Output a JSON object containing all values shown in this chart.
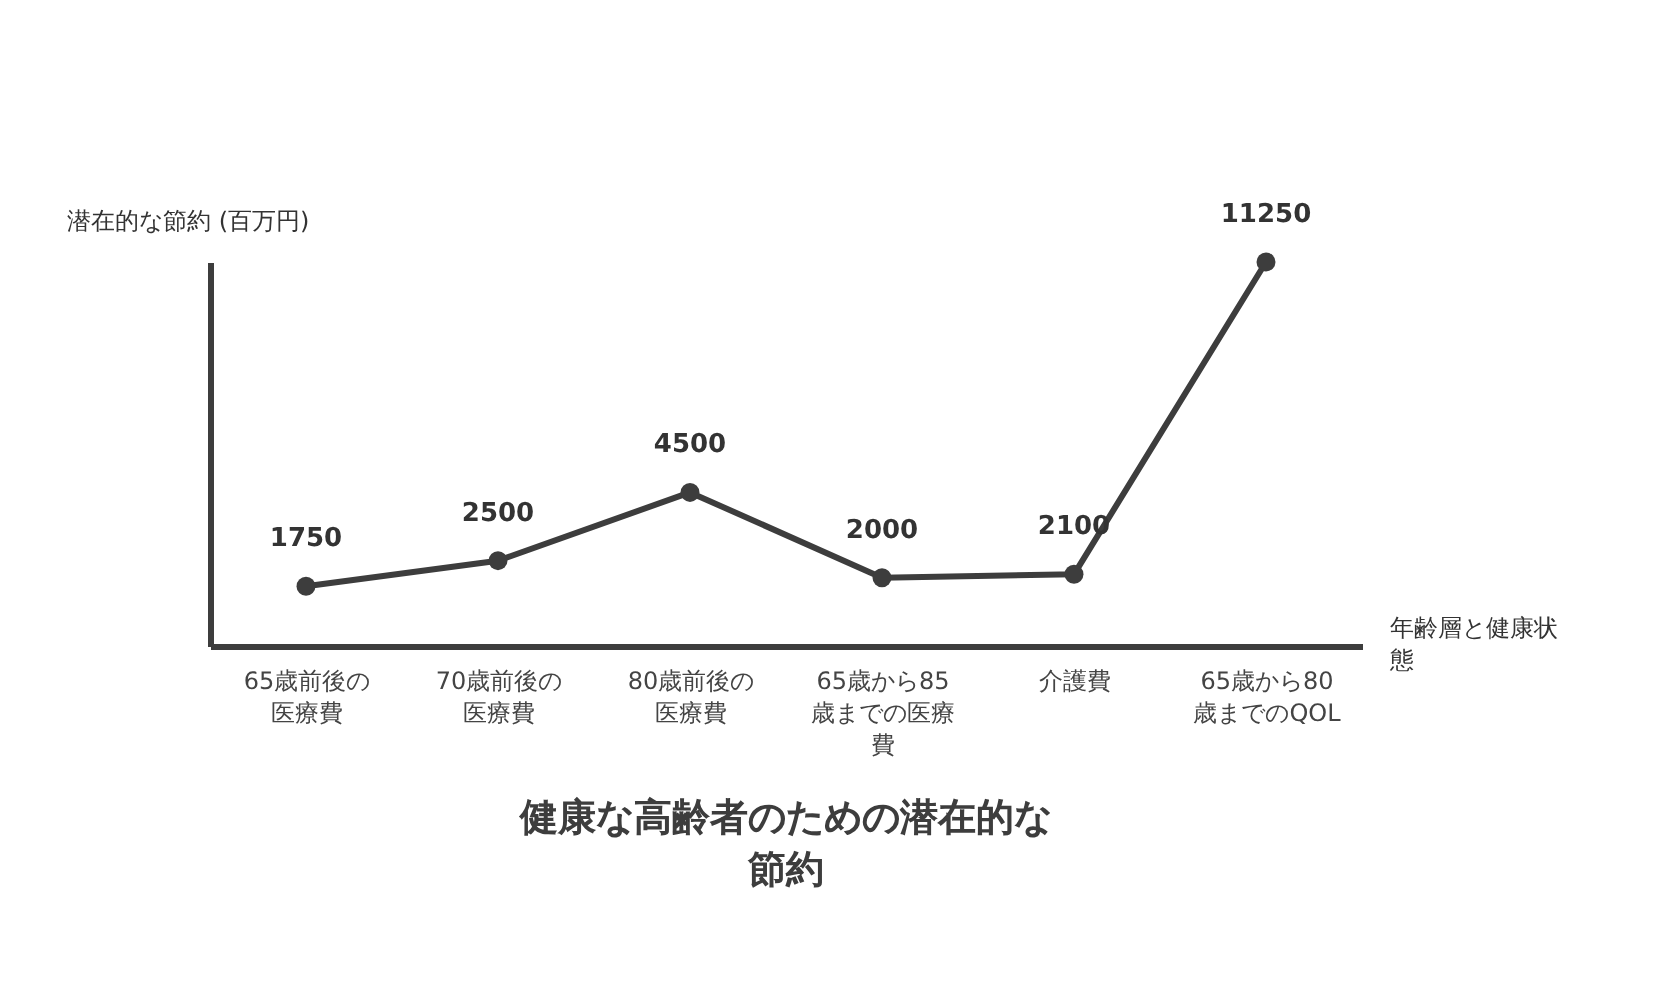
{
  "chart_data": {
    "type": "line",
    "title": "健康な高齢者のための潜在的な節約",
    "xlabel": "年齢層と健康状態",
    "ylabel": "潜在的な節約 (百万円)",
    "categories": [
      "65歳前後の医療費",
      "70歳前後の医療費",
      "80歳前後の医療費",
      "65歳から85歳までの医療費",
      "介護費",
      "65歳から80歳までのQOL"
    ],
    "series": [
      {
        "color": "#3d3d3d",
        "values": [
          1750,
          2500,
          4500,
          2000,
          2100,
          11250
        ]
      }
    ],
    "data_labels": true,
    "marker": "circle",
    "line_style": "solid"
  }
}
